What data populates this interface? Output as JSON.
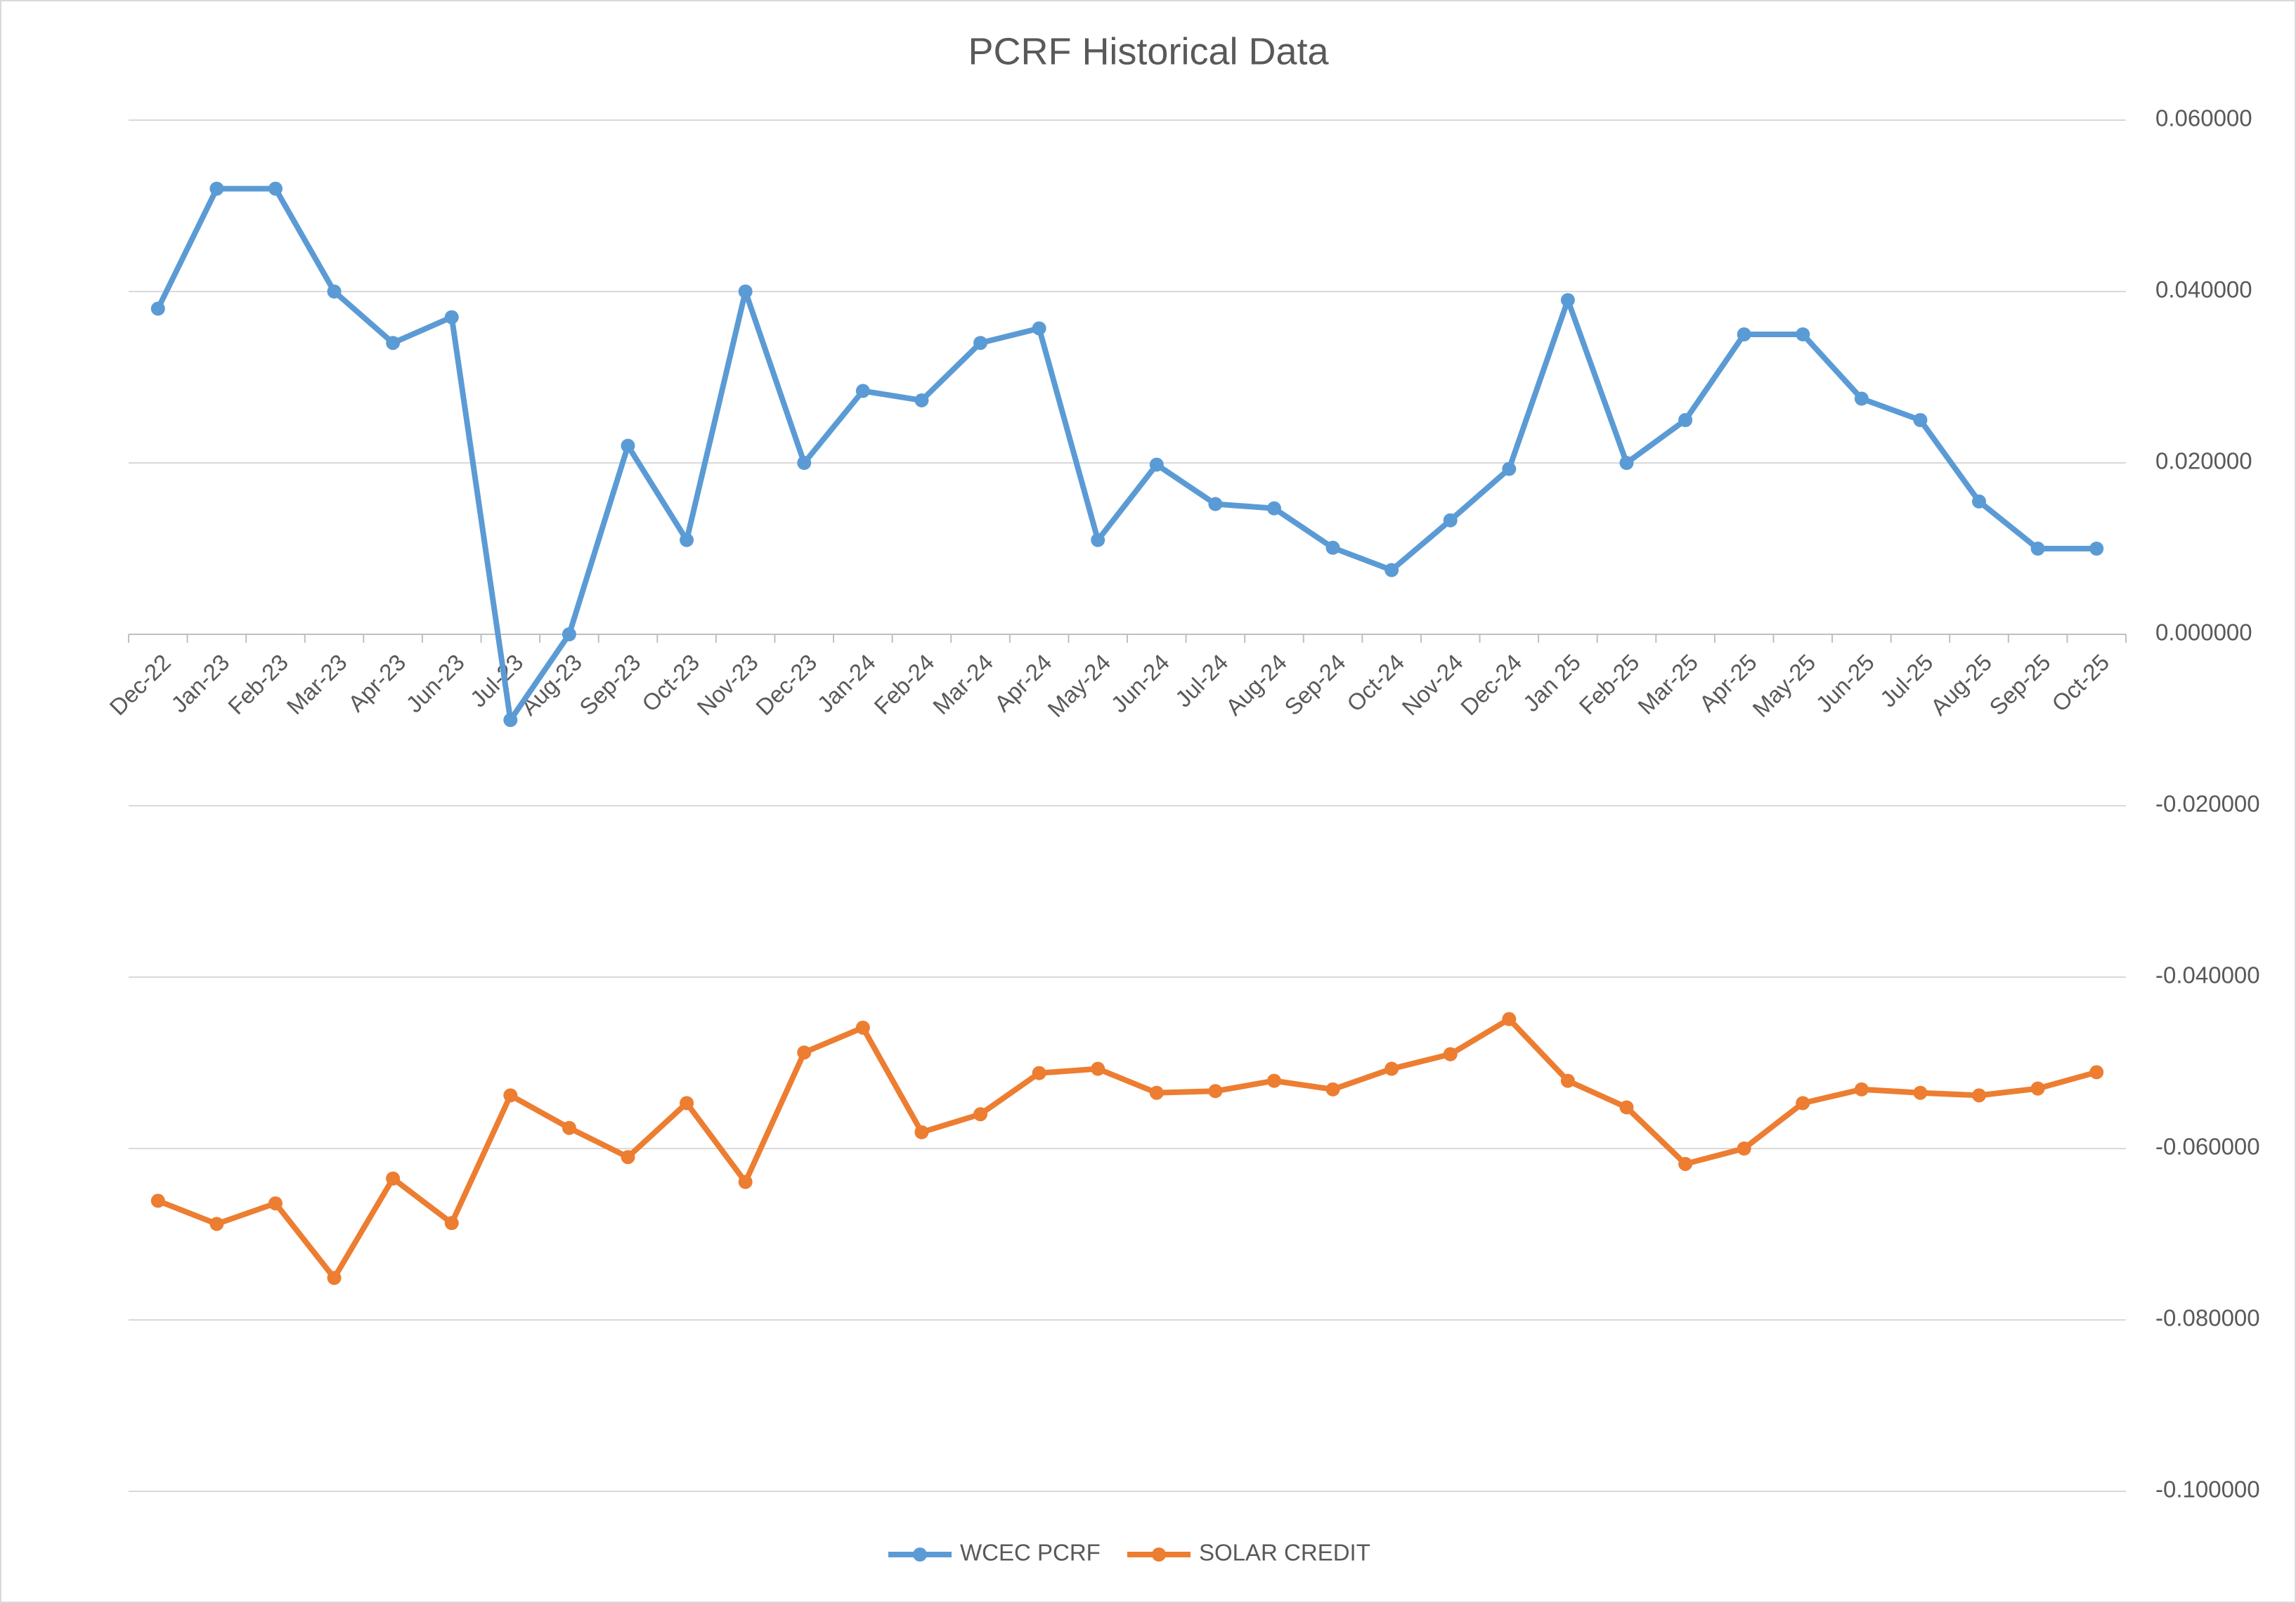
{
  "chart_data": {
    "type": "line",
    "title": "PCRF Historical Data",
    "categories": [
      "Dec-22",
      "Jan-23",
      "Feb-23",
      "Mar-23",
      "Apr-23",
      "Jun-23",
      "Jul-23",
      "Aug-23",
      "Sep-23",
      "Oct-23",
      "Nov-23",
      "Dec-23",
      "Jan-24",
      "Feb-24",
      "Mar-24",
      "Apr-24",
      "May-24",
      "Jun-24",
      "Jul-24",
      "Aug-24",
      "Sep-24",
      "Oct-24",
      "Nov-24",
      "Dec-24",
      "Jan 25",
      "Feb-25",
      "Mar-25",
      "Apr-25",
      "May-25",
      "Jun-25",
      "Jul-25",
      "Aug-25",
      "Sep-25",
      "Oct-25"
    ],
    "series": [
      {
        "name": "WCEC PCRF",
        "color": "#5b9bd5",
        "values": [
          0.038,
          0.052,
          0.052,
          0.04,
          0.034,
          0.037,
          -0.01,
          0.0,
          0.022,
          0.011,
          0.04,
          0.02,
          0.0284,
          0.0273,
          0.034,
          0.0357,
          0.011,
          0.0198,
          0.0152,
          0.0147,
          0.0101,
          0.0075,
          0.0133,
          0.0193,
          0.039,
          0.02,
          0.025,
          0.035,
          0.035,
          0.0275,
          0.025,
          0.0155,
          0.01,
          0.01
        ]
      },
      {
        "name": "SOLAR CREDIT",
        "color": "#ed7d31",
        "values": [
          -0.0661,
          -0.0688,
          -0.0664,
          -0.0751,
          -0.0635,
          -0.0687,
          -0.0538,
          -0.0576,
          -0.061,
          -0.0547,
          -0.0639,
          -0.0488,
          -0.0459,
          -0.0581,
          -0.056,
          -0.0512,
          -0.0507,
          -0.0535,
          -0.0533,
          -0.0521,
          -0.0531,
          -0.0507,
          -0.049,
          -0.0449,
          -0.0521,
          -0.0552,
          -0.0618,
          -0.06,
          -0.0547,
          -0.0531,
          -0.0535,
          -0.0538,
          -0.053,
          -0.0511
        ]
      }
    ],
    "ylim": [
      -0.1,
      0.06
    ],
    "yticks": [
      {
        "value": -0.1,
        "label": "-0.100000"
      },
      {
        "value": -0.08,
        "label": "-0.080000"
      },
      {
        "value": -0.06,
        "label": "-0.060000"
      },
      {
        "value": -0.04,
        "label": "-0.040000"
      },
      {
        "value": -0.02,
        "label": "-0.020000"
      },
      {
        "value": 0,
        "label": "0.000000"
      },
      {
        "value": 0.02,
        "label": "0.020000"
      },
      {
        "value": 0.04,
        "label": "0.040000"
      },
      {
        "value": 0.06,
        "label": "0.060000"
      }
    ],
    "y_axis_side": "right",
    "grid": true,
    "legend": "bottom"
  }
}
